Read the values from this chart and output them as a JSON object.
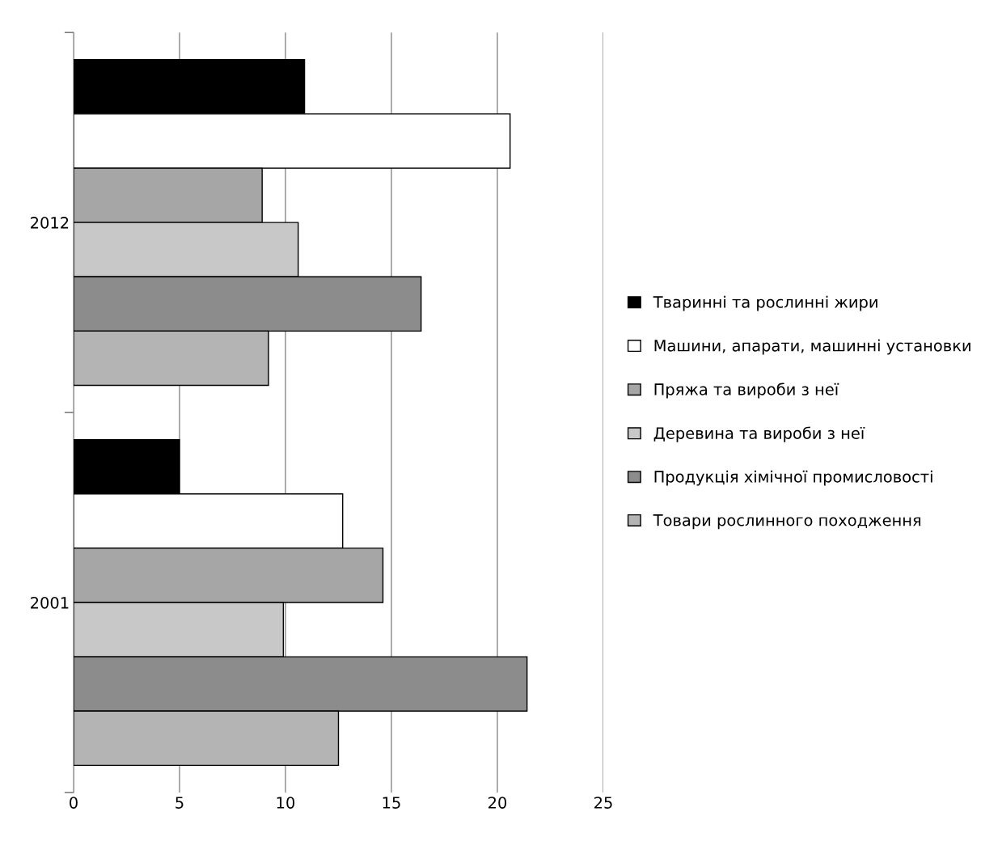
{
  "chart_data": {
    "type": "bar",
    "orientation": "horizontal",
    "categories": [
      "2012",
      "2001"
    ],
    "series": [
      {
        "name": "Тваринні та рослинні жири",
        "color": "#000000",
        "values": [
          10.9,
          5.0
        ]
      },
      {
        "name": "Машини, апарати, машинні установки",
        "color": "#ffffff",
        "values": [
          20.6,
          12.7
        ]
      },
      {
        "name": "Пряжа та вироби з неї",
        "color": "#a6a6a6",
        "values": [
          8.9,
          14.6
        ]
      },
      {
        "name": "Деревина та вироби з неї",
        "color": "#c8c8c8",
        "values": [
          10.6,
          9.9
        ]
      },
      {
        "name": "Продукція хімічної промисловості",
        "color": "#8c8c8c",
        "values": [
          16.4,
          21.4
        ]
      },
      {
        "name": "Товари рослинного походження",
        "color": "#b4b4b4",
        "values": [
          9.2,
          12.5
        ]
      }
    ],
    "xlim": [
      0,
      25
    ],
    "xticks": [
      0,
      5,
      10,
      15,
      20,
      25
    ],
    "grid": "x",
    "legend": "right"
  }
}
